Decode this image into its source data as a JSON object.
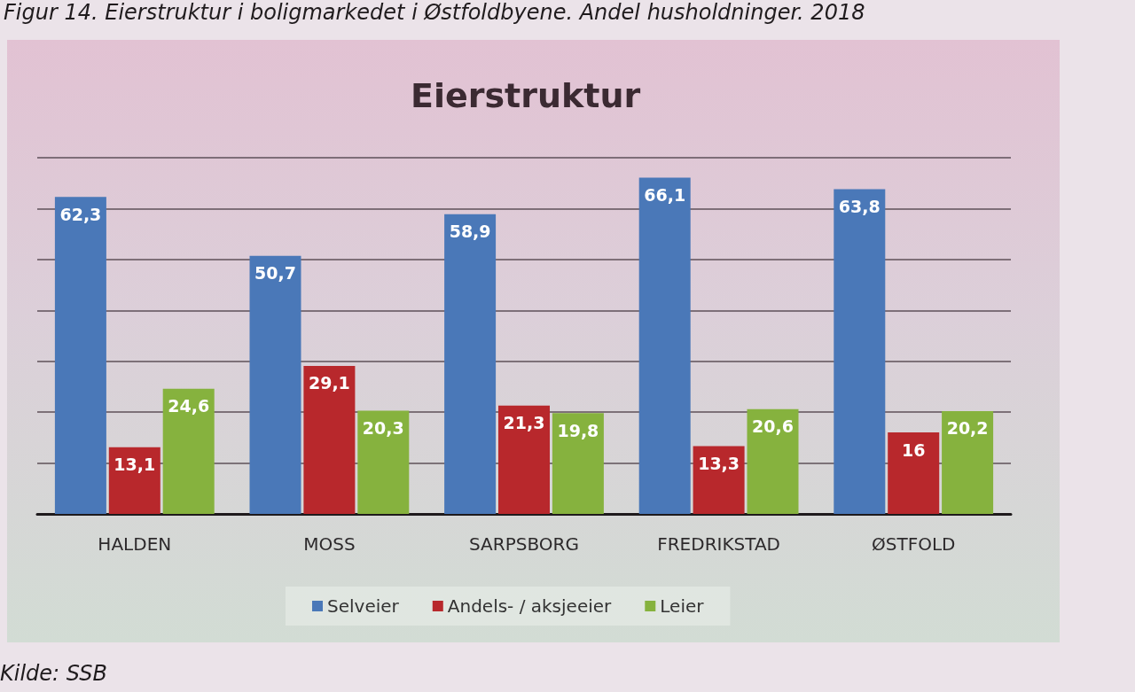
{
  "chart_data": {
    "type": "bar",
    "title": "Eierstruktur",
    "annotations": [
      "Figur 14. Eierstruktur i boligmarkedet i Østfoldbyene. Andel husholdninger. 2018",
      "Kilde: SSB"
    ],
    "categories": [
      "HALDEN",
      "MOSS",
      "SARPSBORG",
      "FREDRIKSTAD",
      "ØSTFOLD"
    ],
    "series": [
      {
        "name": "Selveier",
        "color": "#4a78b8",
        "values": [
          62.3,
          50.7,
          58.9,
          66.1,
          63.8
        ],
        "value_labels": [
          "62,3",
          "50,7",
          "58,9",
          "66,1",
          "63,8"
        ]
      },
      {
        "name": "Andels- / aksjeeier",
        "color": "#b8282c",
        "values": [
          13.1,
          29.1,
          21.3,
          13.3,
          16
        ],
        "value_labels": [
          "13,1",
          "29,1",
          "21,3",
          "13,3",
          "16"
        ]
      },
      {
        "name": "Leier",
        "color": "#86b23e",
        "values": [
          24.6,
          20.3,
          19.8,
          20.6,
          20.2
        ],
        "value_labels": [
          "24,6",
          "20,3",
          "19,8",
          "20,6",
          "20,2"
        ]
      }
    ],
    "ylim": [
      0,
      70
    ],
    "yticks": [
      {
        "value": 0,
        "label": null
      },
      {
        "value": 10,
        "label": null
      },
      {
        "value": 20,
        "label": null
      },
      {
        "value": 30,
        "label": null
      },
      {
        "value": 40,
        "label": null
      },
      {
        "value": 50,
        "label": null
      },
      {
        "value": 60,
        "label": null
      },
      {
        "value": 70,
        "label": null
      }
    ],
    "tick_labels": "x",
    "grid": "y",
    "legend": "bottom"
  }
}
